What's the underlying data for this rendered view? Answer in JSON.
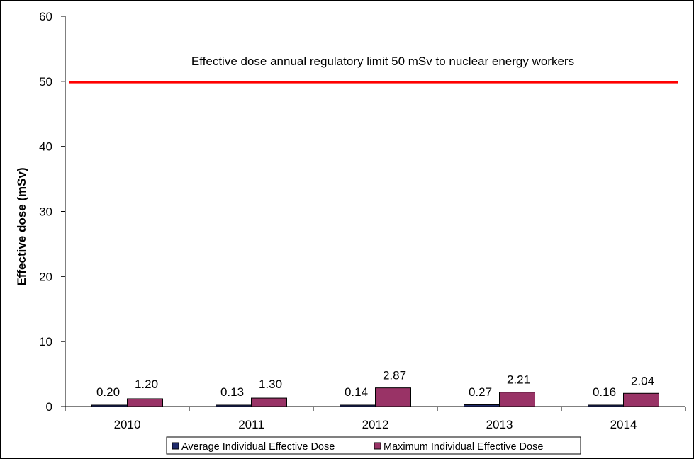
{
  "chart_data": {
    "type": "bar",
    "title": "",
    "xlabel": "",
    "ylabel": "Effective dose (mSv)",
    "ylim": [
      0,
      60
    ],
    "yticks": [
      0,
      10,
      20,
      30,
      40,
      50,
      60
    ],
    "categories": [
      "2010",
      "2011",
      "2012",
      "2013",
      "2014"
    ],
    "series": [
      {
        "name": "Average Individual Effective Dose",
        "values": [
          0.2,
          0.13,
          0.14,
          0.27,
          0.16
        ],
        "labels": [
          "0.20",
          "0.13",
          "0.14",
          "0.27",
          "0.16"
        ],
        "color": "#1f2a6b"
      },
      {
        "name": "Maximum Individual Effective Dose",
        "values": [
          1.2,
          1.3,
          2.87,
          2.21,
          2.04
        ],
        "labels": [
          "1.20",
          "1.30",
          "2.87",
          "2.21",
          "2.04"
        ],
        "color": "#993366"
      }
    ],
    "reference_line": {
      "value": 50,
      "label": "Effective dose annual regulatory limit 50 mSv to nuclear energy workers",
      "color": "#ff0000"
    },
    "legend_position": "bottom",
    "grid": false
  }
}
